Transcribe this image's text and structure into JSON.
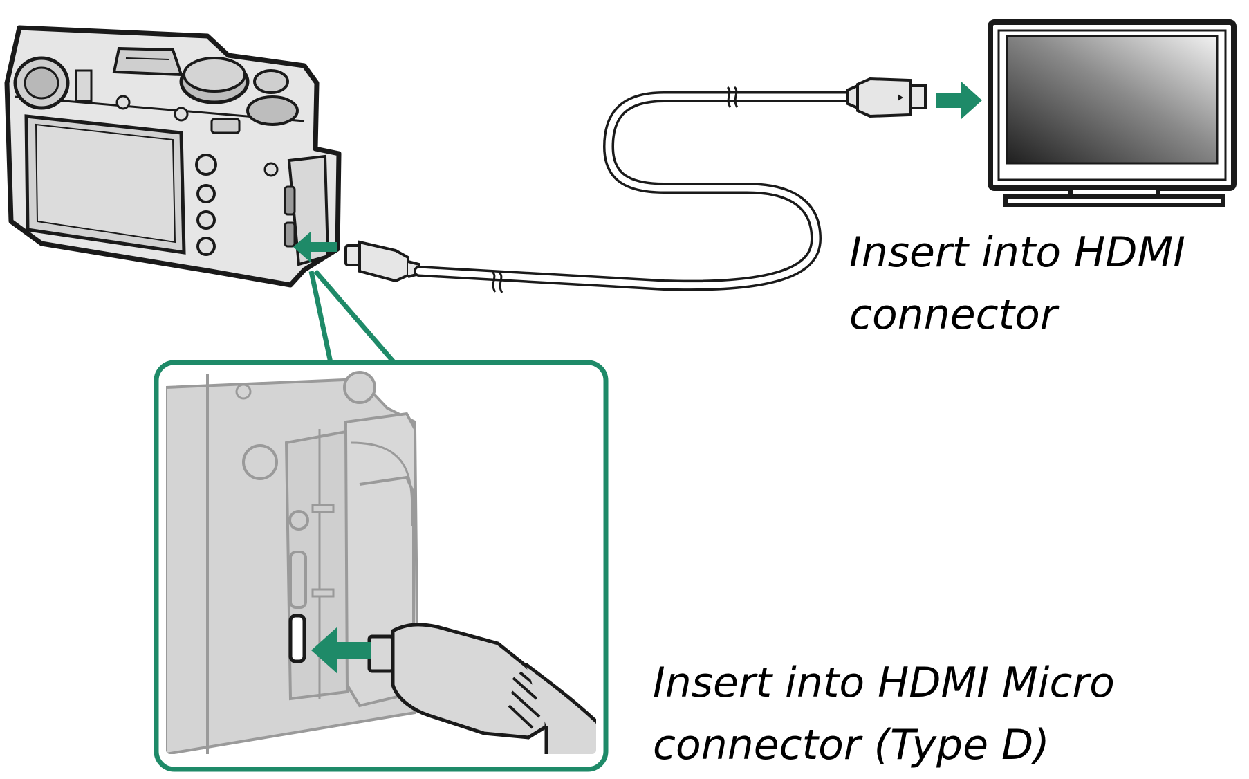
{
  "captions": {
    "tv_line1": "Insert into HDMI",
    "tv_line2": "connector",
    "camera_line1": "Insert into HDMI Micro",
    "camera_line2": "connector (Type D)"
  },
  "colors": {
    "accent_green": "#1e8a68",
    "outline": "#1a1a1a",
    "body_fill": "#d8d8d8",
    "zoom_fill": "#cfcfcf",
    "zoom_line": "#9a9a9a"
  },
  "icons": [
    "camera-icon",
    "tv-icon",
    "hdmi-cable-icon",
    "insert-arrow-icon",
    "zoom-callout-icon"
  ]
}
